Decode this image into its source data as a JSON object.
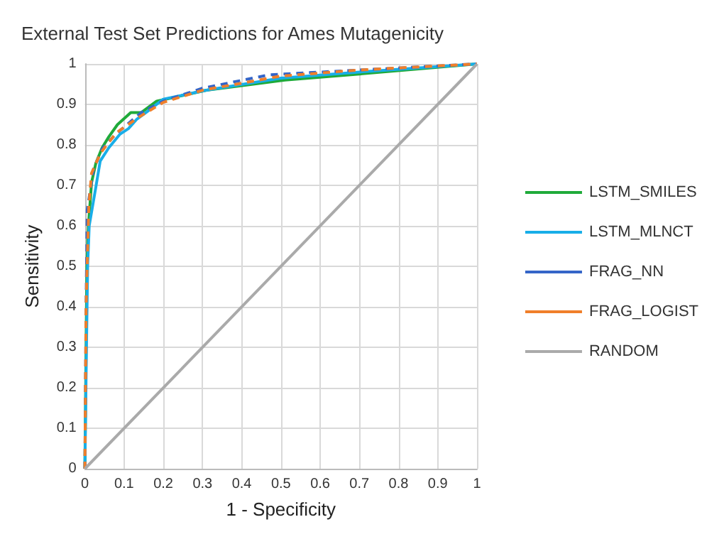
{
  "chart_data": {
    "type": "line",
    "title": "External Test Set Predictions for Ames Mutagenicity",
    "xlabel": "1 - Specificity",
    "ylabel": "Sensitivity",
    "xlim": [
      0,
      1
    ],
    "ylim": [
      0,
      1
    ],
    "xticks": [
      0,
      0.1,
      0.2,
      0.3,
      0.4,
      0.5,
      0.6,
      0.7,
      0.8,
      0.9,
      1
    ],
    "yticks": [
      0,
      0.1,
      0.2,
      0.3,
      0.4,
      0.5,
      0.6,
      0.7,
      0.8,
      0.9,
      1
    ],
    "grid": true,
    "legend": "right",
    "marker": "none",
    "series": [
      {
        "name": "LSTM_SMILES",
        "color": "#1faa3a",
        "line_style": "solid",
        "x": [
          0,
          0.003,
          0.005,
          0.009,
          0.017,
          0.028,
          0.044,
          0.061,
          0.083,
          0.117,
          0.144,
          0.183,
          0.31,
          0.51,
          0.7,
          1
        ],
        "values": [
          0,
          0.3,
          0.5,
          0.6,
          0.707,
          0.755,
          0.793,
          0.82,
          0.85,
          0.88,
          0.88,
          0.908,
          0.935,
          0.96,
          0.975,
          1
        ]
      },
      {
        "name": "LSTM_MLNCT",
        "color": "#18aee8",
        "line_style": "solid",
        "x": [
          0,
          0.004,
          0.007,
          0.011,
          0.028,
          0.039,
          0.061,
          0.089,
          0.111,
          0.133,
          0.156,
          0.2,
          0.31,
          0.5,
          0.7,
          1
        ],
        "values": [
          0,
          0.3,
          0.5,
          0.6,
          0.696,
          0.76,
          0.793,
          0.826,
          0.84,
          0.864,
          0.88,
          0.913,
          0.935,
          0.965,
          0.98,
          1
        ]
      },
      {
        "name": "FRAG_NN",
        "color": "#3465c8",
        "line_style": "dashed",
        "x": [
          0,
          0.003,
          0.006,
          0.022,
          0.044,
          0.078,
          0.144,
          0.2,
          0.3,
          0.47,
          0.7,
          1
        ],
        "values": [
          0,
          0.4,
          0.64,
          0.74,
          0.79,
          0.826,
          0.88,
          0.908,
          0.94,
          0.973,
          0.985,
          1
        ]
      },
      {
        "name": "FRAG_LOGIST",
        "color": "#f07f2a",
        "line_style": "dashed",
        "x": [
          0,
          0.003,
          0.01,
          0.017,
          0.04,
          0.08,
          0.14,
          0.2,
          0.3,
          0.5,
          0.7,
          1
        ],
        "values": [
          0,
          0.4,
          0.65,
          0.73,
          0.78,
          0.83,
          0.87,
          0.905,
          0.935,
          0.97,
          0.985,
          1
        ]
      },
      {
        "name": "RANDOM",
        "color": "#aaaaaa",
        "line_style": "solid",
        "x": [
          0,
          1
        ],
        "values": [
          0,
          1
        ]
      }
    ]
  }
}
